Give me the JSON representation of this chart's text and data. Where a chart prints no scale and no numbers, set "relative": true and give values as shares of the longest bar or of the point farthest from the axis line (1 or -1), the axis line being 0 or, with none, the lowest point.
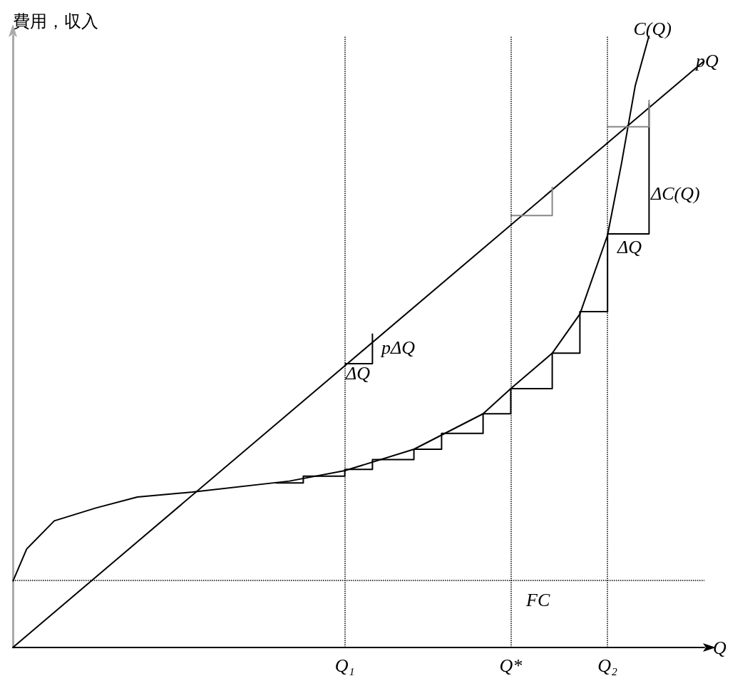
{
  "chart_data": {
    "type": "line",
    "relative": true,
    "ylabel": "費用，収入",
    "xlabel": "Q",
    "categories": [
      null,
      null,
      null,
      null,
      null,
      null,
      null,
      null,
      null,
      null,
      null,
      null,
      null,
      null,
      null,
      null,
      null,
      null,
      null,
      null,
      null,
      null,
      null,
      null,
      "Q₁",
      null,
      null,
      null,
      null,
      null,
      null,
      null,
      null,
      null,
      null,
      null,
      "Q*",
      null,
      null,
      null,
      null,
      null,
      null,
      "Q₂",
      null,
      null,
      null,
      null,
      null,
      null,
      null
    ],
    "tick_labels": "x",
    "grid": false,
    "legend": false,
    "marker": "none",
    "series": [
      {
        "name": "C(Q)",
        "color": "#000000",
        "values": [
          0.108,
          0.161,
          null,
          0.207,
          null,
          null,
          0.228,
          null,
          null,
          0.246,
          null,
          null,
          null,
          0.254,
          null,
          null,
          null,
          null,
          null,
          null,
          0.272,
          null,
          null,
          null,
          0.289,
          null,
          null,
          null,
          null,
          0.324,
          null,
          null,
          null,
          null,
          0.382,
          null,
          0.423,
          null,
          null,
          0.481,
          null,
          0.545,
          null,
          0.674,
          0.79,
          0.918,
          1,
          null,
          null,
          null,
          null
        ]
      },
      {
        "name": "pQ",
        "color": "#000000",
        "values": [
          0,
          null,
          null,
          null,
          null,
          null,
          null,
          null,
          null,
          null,
          null,
          null,
          null,
          null,
          null,
          null,
          null,
          null,
          null,
          null,
          null,
          null,
          null,
          null,
          null,
          null,
          null,
          null,
          null,
          null,
          null,
          null,
          null,
          null,
          null,
          null,
          null,
          null,
          null,
          null,
          null,
          null,
          null,
          null,
          null,
          null,
          null,
          null,
          null,
          null,
          0.959
        ]
      },
      {
        "type": "step",
        "color": "#000000",
        "values": [
          null,
          null,
          null,
          null,
          null,
          null,
          null,
          null,
          null,
          null,
          null,
          null,
          null,
          null,
          null,
          null,
          null,
          null,
          null,
          0.269,
          null,
          0.28,
          null,
          null,
          0.291,
          null,
          0.307,
          null,
          null,
          0.324,
          null,
          0.35,
          null,
          null,
          0.382,
          null,
          0.423,
          null,
          null,
          0.481,
          null,
          0.549,
          null,
          0.676,
          null,
          null,
          0.889,
          null,
          null,
          null,
          null
        ]
      },
      {
        "type": "step",
        "color": "#000000",
        "values": [
          null,
          null,
          null,
          null,
          null,
          null,
          null,
          null,
          null,
          null,
          null,
          null,
          null,
          null,
          null,
          null,
          null,
          null,
          null,
          null,
          null,
          null,
          null,
          null,
          0.464,
          null,
          0.513,
          null,
          null,
          null,
          null,
          null,
          null,
          null,
          null,
          null,
          null,
          null,
          null,
          null,
          null,
          null,
          null,
          null,
          null,
          null,
          null,
          null,
          null,
          null,
          null
        ]
      },
      {
        "type": "step",
        "color": "#888888",
        "values": [
          null,
          null,
          null,
          null,
          null,
          null,
          null,
          null,
          null,
          null,
          null,
          null,
          null,
          null,
          null,
          null,
          null,
          null,
          null,
          null,
          null,
          null,
          null,
          null,
          null,
          null,
          null,
          null,
          null,
          null,
          null,
          null,
          null,
          null,
          null,
          null,
          0.706,
          null,
          null,
          0.753,
          null,
          null,
          null,
          null,
          null,
          null,
          null,
          null,
          null,
          null,
          null
        ]
      },
      {
        "type": "step",
        "color": "#888888",
        "values": [
          null,
          null,
          null,
          null,
          null,
          null,
          null,
          null,
          null,
          null,
          null,
          null,
          null,
          null,
          null,
          null,
          null,
          null,
          null,
          null,
          null,
          null,
          null,
          null,
          null,
          null,
          null,
          null,
          null,
          null,
          null,
          null,
          null,
          null,
          null,
          null,
          null,
          null,
          null,
          null,
          null,
          null,
          null,
          0.851,
          null,
          null,
          0.895,
          null,
          null,
          null,
          null
        ]
      }
    ],
    "ref_lines": [
      {
        "axis": "x",
        "value": "Q₁",
        "line_style": "dotted",
        "color": "#000000"
      },
      {
        "axis": "x",
        "value": "Q*",
        "line_style": "dotted",
        "color": "#000000"
      },
      {
        "axis": "x",
        "value": "Q₂",
        "line_style": "dotted",
        "color": "#000000"
      },
      {
        "axis": "y",
        "value": 0.108,
        "line_style": "dotted",
        "color": "#000000"
      }
    ],
    "annotations": [
      "ΔC(Q)",
      "ΔQ",
      "pΔQ",
      "ΔQ",
      "FC"
    ]
  }
}
